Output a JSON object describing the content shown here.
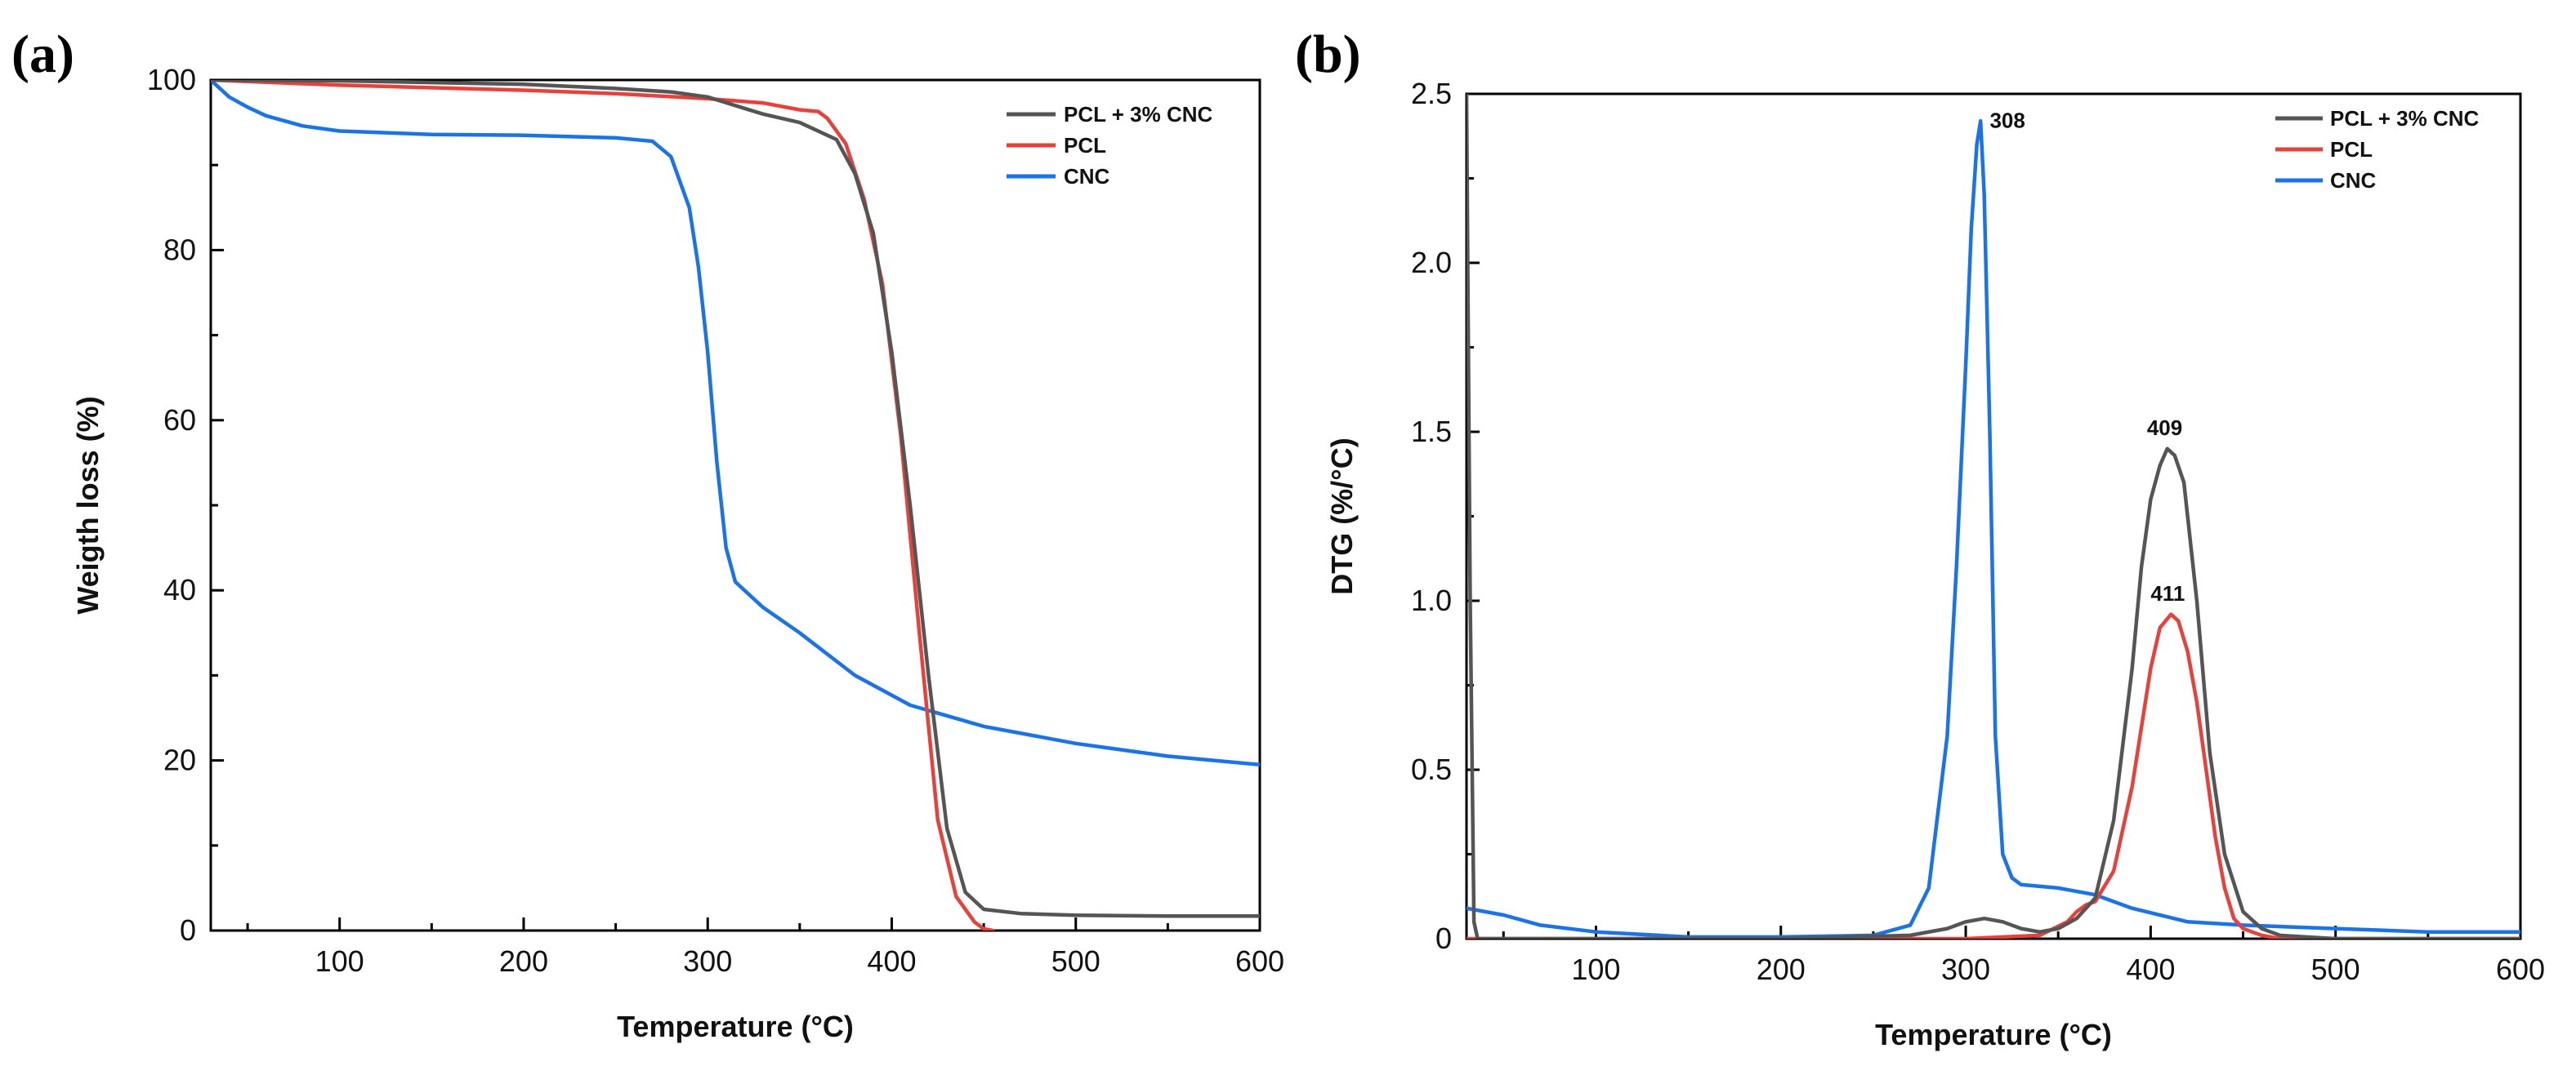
{
  "chart_data": [
    {
      "panel_label": "(a)",
      "type": "line",
      "title": "",
      "xlabel": "Temperature (°C)",
      "ylabel": "Weigth loss (%)",
      "xlim": [
        30,
        600
      ],
      "ylim": [
        0,
        100
      ],
      "xticks": [
        100,
        200,
        300,
        400,
        500,
        600
      ],
      "yticks": [
        0,
        20,
        40,
        60,
        80,
        100
      ],
      "legend_position": "top-right",
      "series": [
        {
          "name": "PCL + 3% CNC",
          "color": "#555555",
          "x": [
            30,
            100,
            200,
            250,
            280,
            300,
            315,
            330,
            350,
            370,
            380,
            390,
            400,
            410,
            420,
            430,
            440,
            450,
            470,
            500,
            550,
            600
          ],
          "y": [
            100,
            99.9,
            99.5,
            99,
            98.6,
            98,
            97,
            96,
            95,
            93,
            89,
            82,
            68,
            50,
            30,
            12,
            4.5,
            2.5,
            2,
            1.8,
            1.7,
            1.7
          ]
        },
        {
          "name": "PCL",
          "color": "#e8403a",
          "x": [
            30,
            100,
            200,
            250,
            300,
            330,
            350,
            360,
            365,
            375,
            385,
            395,
            405,
            415,
            425,
            435,
            445,
            450,
            455
          ],
          "y": [
            100,
            99.4,
            98.8,
            98.4,
            97.8,
            97.3,
            96.5,
            96.3,
            95.5,
            92.5,
            86,
            76,
            58,
            35,
            13,
            4,
            1,
            0.2,
            0
          ]
        },
        {
          "name": "CNC",
          "color": "#1a73e8",
          "x": [
            30,
            40,
            50,
            60,
            80,
            100,
            150,
            200,
            250,
            270,
            280,
            290,
            295,
            300,
            305,
            310,
            315,
            330,
            350,
            380,
            410,
            450,
            500,
            550,
            600
          ],
          "y": [
            100,
            98,
            96.8,
            95.8,
            94.6,
            94,
            93.6,
            93.5,
            93.2,
            92.8,
            91,
            85,
            78,
            68,
            55,
            45,
            41,
            38,
            35,
            30,
            26.5,
            24,
            22,
            20.5,
            19.5
          ]
        }
      ]
    },
    {
      "panel_label": "(b)",
      "type": "line",
      "title": "",
      "xlabel": "Temperature (°C)",
      "ylabel": "DTG (%/°C)",
      "xlim": [
        30,
        600
      ],
      "ylim": [
        0,
        2.5
      ],
      "xticks": [
        100,
        200,
        300,
        400,
        500,
        600
      ],
      "yticks": [
        0,
        0.5,
        1.0,
        1.5,
        2.0,
        2.5
      ],
      "ytick_labels": [
        "0",
        "0.5",
        "1.0",
        "1.5",
        "2.0",
        "2.5"
      ],
      "legend_position": "top-right",
      "annotations": [
        {
          "text": "308",
          "x": 313,
          "y": 2.4
        },
        {
          "text": "409",
          "x": 398,
          "y": 1.49
        },
        {
          "text": "411",
          "x": 400,
          "y": 1.0
        }
      ],
      "series": [
        {
          "name": "PCL + 3% CNC",
          "color": "#555555",
          "x": [
            30,
            32,
            34,
            36,
            40,
            100,
            200,
            270,
            290,
            300,
            310,
            320,
            330,
            340,
            350,
            360,
            370,
            380,
            390,
            395,
            400,
            405,
            409,
            413,
            418,
            425,
            432,
            440,
            450,
            460,
            470,
            500,
            550,
            600
          ],
          "y": [
            2.5,
            1.0,
            0.05,
            0.0,
            0.0,
            0.0,
            0.0,
            0.01,
            0.03,
            0.05,
            0.06,
            0.05,
            0.03,
            0.02,
            0.03,
            0.06,
            0.12,
            0.35,
            0.8,
            1.1,
            1.3,
            1.4,
            1.45,
            1.43,
            1.35,
            1.0,
            0.55,
            0.25,
            0.08,
            0.03,
            0.01,
            0.0,
            0.0,
            0.0
          ]
        },
        {
          "name": "PCL",
          "color": "#e8403a",
          "x": [
            30,
            100,
            200,
            300,
            340,
            355,
            360,
            365,
            370,
            380,
            390,
            400,
            405,
            411,
            415,
            420,
            425,
            430,
            435,
            440,
            445,
            450,
            460,
            470,
            500,
            600
          ],
          "y": [
            0,
            0,
            0,
            0,
            0.01,
            0.05,
            0.08,
            0.1,
            0.11,
            0.2,
            0.45,
            0.8,
            0.92,
            0.96,
            0.94,
            0.85,
            0.7,
            0.5,
            0.3,
            0.15,
            0.06,
            0.03,
            0.01,
            0.0,
            0.0,
            0.0
          ]
        },
        {
          "name": "CNC",
          "color": "#1a73e8",
          "x": [
            30,
            50,
            70,
            100,
            150,
            200,
            250,
            270,
            280,
            290,
            295,
            300,
            303,
            306,
            308,
            310,
            313,
            316,
            320,
            325,
            330,
            350,
            370,
            390,
            420,
            450,
            500,
            550,
            600
          ],
          "y": [
            0.09,
            0.07,
            0.04,
            0.02,
            0.005,
            0.005,
            0.01,
            0.04,
            0.15,
            0.6,
            1.1,
            1.7,
            2.1,
            2.35,
            2.42,
            2.2,
            1.5,
            0.6,
            0.25,
            0.18,
            0.16,
            0.15,
            0.13,
            0.09,
            0.05,
            0.04,
            0.03,
            0.02,
            0.02
          ]
        }
      ]
    }
  ]
}
